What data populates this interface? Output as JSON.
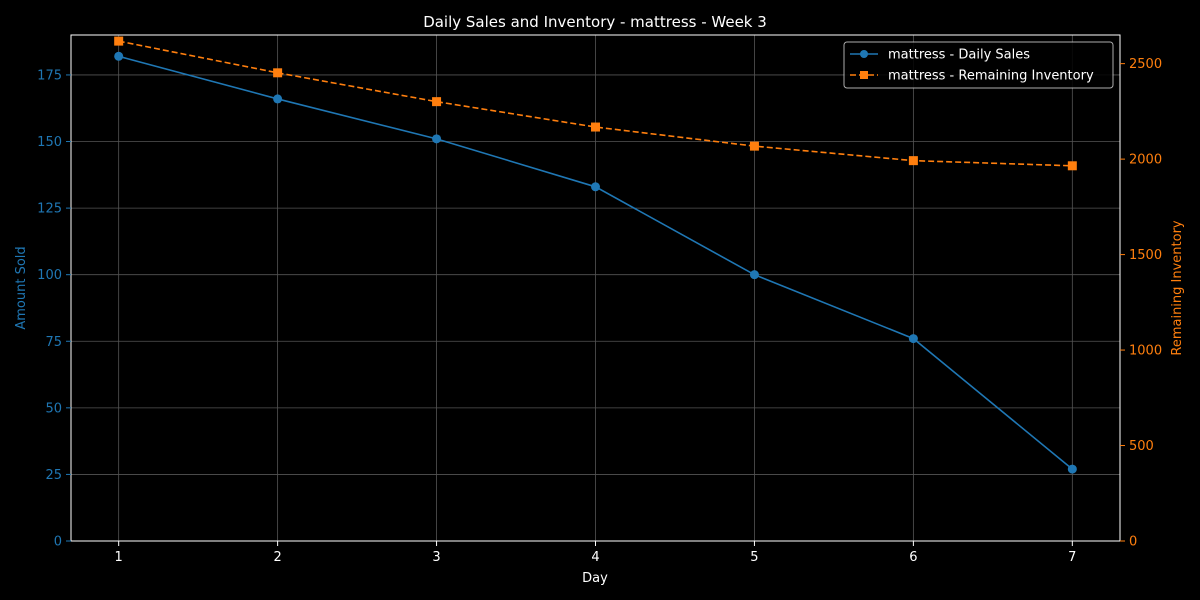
{
  "chart_data": {
    "type": "line",
    "title": "Daily Sales and Inventory - mattress - Week 3",
    "xlabel": "Day",
    "ylabel_left": "Amount Sold",
    "ylabel_right": "Remaining Inventory",
    "x": [
      1,
      2,
      3,
      4,
      5,
      6,
      7
    ],
    "xlim": [
      0.7,
      7.3
    ],
    "ylim_left": [
      0,
      190
    ],
    "ylim_right": [
      0,
      2650
    ],
    "yticks_left": [
      0,
      25,
      50,
      75,
      100,
      125,
      150,
      175
    ],
    "yticks_right": [
      0,
      500,
      1000,
      1500,
      2000,
      2500
    ],
    "grid": true,
    "legend_position": "top-right",
    "series": [
      {
        "name": "mattress - Daily Sales",
        "axis": "left",
        "color": "#1f77b4",
        "marker": "circle",
        "line_style": "solid",
        "values": [
          182,
          166,
          151,
          133,
          100,
          76,
          27
        ]
      },
      {
        "name": "mattress - Remaining Inventory",
        "axis": "right",
        "color": "#ff7f0e",
        "marker": "square",
        "line_style": "dashed",
        "values": [
          2618,
          2452,
          2301,
          2168,
          2068,
          1992,
          1965
        ]
      }
    ],
    "colors": {
      "background": "#000000",
      "text": "#ffffff",
      "grid": "#555555"
    }
  }
}
